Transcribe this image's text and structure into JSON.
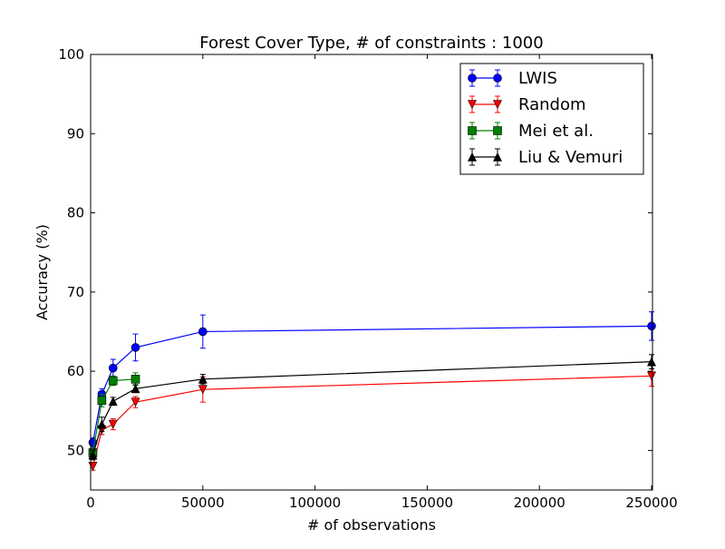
{
  "chart_data": {
    "type": "line",
    "title": "Forest Cover Type, # of constraints : 1000",
    "xlabel": "# of observations",
    "ylabel": "Accuracy (%)",
    "xlim": [
      0,
      250000
    ],
    "ylim": [
      45,
      100
    ],
    "xticks": [
      0,
      50000,
      100000,
      150000,
      200000,
      250000
    ],
    "xtick_labels": [
      "0",
      "50000",
      "100000",
      "150000",
      "200000",
      "250000"
    ],
    "yticks": [
      50,
      60,
      70,
      80,
      90,
      100
    ],
    "ytick_labels": [
      "50",
      "60",
      "70",
      "80",
      "90",
      "100"
    ],
    "grid": false,
    "legend_position": "top-right",
    "series": [
      {
        "name": "LWIS",
        "color": "#0000ff",
        "marker": "circle",
        "x": [
          1000,
          5000,
          10000,
          20000,
          50000,
          250000
        ],
        "y": [
          51.0,
          57.1,
          60.4,
          63.0,
          65.0,
          65.7
        ],
        "err": [
          0.6,
          0.7,
          1.1,
          1.7,
          2.1,
          1.8
        ]
      },
      {
        "name": "Random",
        "color": "#ff0000",
        "marker": "triangle-down",
        "x": [
          1000,
          5000,
          10000,
          20000,
          50000,
          250000
        ],
        "y": [
          48.0,
          52.6,
          53.3,
          56.1,
          57.7,
          59.4
        ],
        "err": [
          0.5,
          0.6,
          0.7,
          0.7,
          1.6,
          1.3
        ]
      },
      {
        "name": "Mei et al.",
        "color": "#008000",
        "marker": "square",
        "x": [
          1000,
          5000,
          10000,
          20000
        ],
        "y": [
          49.7,
          56.3,
          58.8,
          59.0
        ],
        "err": [
          0.6,
          0.8,
          0.6,
          0.8
        ]
      },
      {
        "name": "Liu & Vemuri",
        "color": "#000000",
        "marker": "triangle-up",
        "x": [
          1000,
          5000,
          10000,
          20000,
          50000,
          250000
        ],
        "y": [
          49.4,
          53.3,
          56.2,
          57.8,
          59.0,
          61.2
        ],
        "err": [
          0.6,
          0.9,
          0.5,
          0.5,
          0.6,
          0.9
        ]
      }
    ]
  }
}
